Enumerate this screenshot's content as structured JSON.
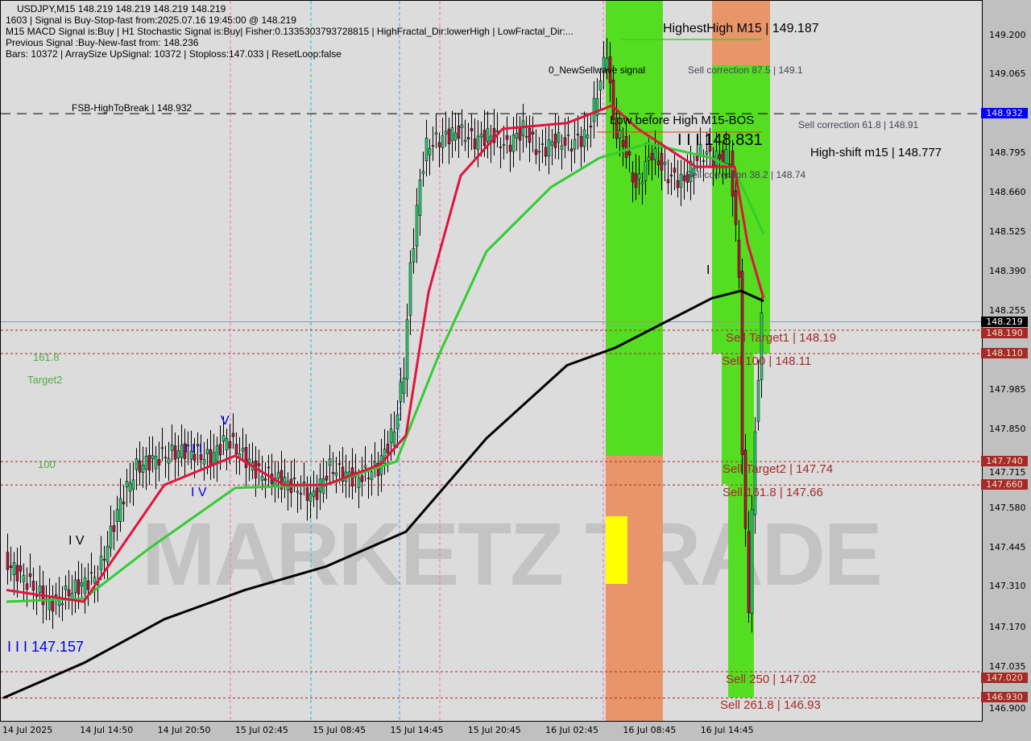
{
  "header": {
    "line1": "USDJPY,M15  148.219 148.219 148.219 148.219",
    "line2": "1603 | Signal is Buy-Stop-fast from:2025.07.16 19:45:00 @ 148.219",
    "line3": "M15 MACD Signal is:Buy | H1 Stochastic Signal is:Buy| Fisher:0.1335303793728815 | HighFractal_Dir:lowerHigh | LowFractal_Dir:...",
    "line4": "Previous Signal :Buy-New-fast from: 148.236",
    "line5": "Bars: 10372 | ArraySize UpSignal: 10372 | Stoploss:147.033 | ResetLoop:false"
  },
  "chart_data": {
    "type": "candlestick",
    "symbol": "USDJPY",
    "timeframe": "M15",
    "ylim": [
      146.9,
      149.25
    ],
    "y_ticks": [
      "149.200",
      "149.065",
      "148.795",
      "148.660",
      "148.525",
      "148.390",
      "148.255",
      "147.985",
      "147.850",
      "147.715",
      "147.580",
      "147.445",
      "147.310",
      "147.170",
      "147.035",
      "146.900"
    ],
    "x_ticks": [
      "14 Jul 2025",
      "14 Jul 14:50",
      "14 Jul 20:50",
      "15 Jul 02:45",
      "15 Jul 08:45",
      "15 Jul 14:45",
      "15 Jul 20:45",
      "16 Jul 02:45",
      "16 Jul 08:45",
      "16 Jul 14:45"
    ],
    "price_path": [
      [
        1,
        147.4
      ],
      [
        8,
        147.33
      ],
      [
        15,
        147.25
      ],
      [
        22,
        147.3
      ],
      [
        30,
        147.35
      ],
      [
        37,
        147.6
      ],
      [
        42,
        147.72
      ],
      [
        50,
        147.76
      ],
      [
        57,
        147.78
      ],
      [
        65,
        147.75
      ],
      [
        70,
        147.82
      ],
      [
        75,
        147.76
      ],
      [
        80,
        147.7
      ],
      [
        86,
        147.68
      ],
      [
        92,
        147.65
      ],
      [
        97,
        147.62
      ],
      [
        102,
        147.72
      ],
      [
        110,
        147.68
      ],
      [
        117,
        147.72
      ],
      [
        122,
        147.85
      ],
      [
        125,
        148.05
      ],
      [
        127,
        148.4
      ],
      [
        130,
        148.7
      ],
      [
        132,
        148.82
      ],
      [
        137,
        148.85
      ],
      [
        142,
        148.87
      ],
      [
        147,
        148.84
      ],
      [
        152,
        148.86
      ],
      [
        157,
        148.82
      ],
      [
        162,
        148.88
      ],
      [
        167,
        148.8
      ],
      [
        172,
        148.84
      ],
      [
        177,
        148.83
      ],
      [
        182,
        148.86
      ],
      [
        186,
        149.05
      ],
      [
        188,
        149.15
      ],
      [
        190,
        148.9
      ],
      [
        194,
        148.8
      ],
      [
        197,
        148.68
      ],
      [
        202,
        148.8
      ],
      [
        207,
        148.72
      ],
      [
        212,
        148.7
      ],
      [
        217,
        148.8
      ],
      [
        222,
        148.78
      ],
      [
        226,
        148.78
      ],
      [
        229,
        148.4
      ],
      [
        230,
        147.75
      ],
      [
        232,
        147.25
      ],
      [
        234,
        147.85
      ],
      [
        236,
        148.22
      ]
    ],
    "ma_fast_red": [
      [
        1,
        147.3
      ],
      [
        25,
        147.26
      ],
      [
        50,
        147.66
      ],
      [
        72,
        147.76
      ],
      [
        87,
        147.66
      ],
      [
        100,
        147.66
      ],
      [
        117,
        147.73
      ],
      [
        125,
        147.83
      ],
      [
        132,
        148.32
      ],
      [
        142,
        148.72
      ],
      [
        155,
        148.88
      ],
      [
        175,
        148.9
      ],
      [
        189,
        148.96
      ],
      [
        197,
        148.88
      ],
      [
        215,
        148.75
      ],
      [
        227,
        148.75
      ],
      [
        231,
        148.49
      ],
      [
        236,
        148.3
      ]
    ],
    "ma_mid_green": [
      [
        1,
        147.26
      ],
      [
        25,
        147.27
      ],
      [
        45,
        147.44
      ],
      [
        72,
        147.65
      ],
      [
        100,
        147.66
      ],
      [
        122,
        147.74
      ],
      [
        135,
        148.1
      ],
      [
        150,
        148.46
      ],
      [
        170,
        148.68
      ],
      [
        185,
        148.78
      ],
      [
        200,
        148.83
      ],
      [
        220,
        148.78
      ],
      [
        227,
        148.74
      ],
      [
        236,
        148.52
      ]
    ],
    "ma_slow_black": [
      [
        0,
        146.93
      ],
      [
        25,
        147.05
      ],
      [
        50,
        147.2
      ],
      [
        75,
        147.3
      ],
      [
        100,
        147.38
      ],
      [
        125,
        147.5
      ],
      [
        150,
        147.82
      ],
      [
        175,
        148.07
      ],
      [
        190,
        148.13
      ],
      [
        220,
        148.3
      ],
      [
        229,
        148.325
      ],
      [
        236,
        148.29
      ]
    ],
    "levels": [
      {
        "price": 148.932,
        "label": "FSB-HighToBreak | 148.932",
        "tag": "148.932",
        "color": "#0000ff",
        "style": "dash-black"
      },
      {
        "price": 148.219,
        "tag": "148.219",
        "color": "#000000",
        "style": "solid-gray"
      },
      {
        "price": 148.19,
        "label": "Sell Target1 | 148.19",
        "tag": "148.190",
        "color": "#a52a2a",
        "style": "dotted"
      },
      {
        "price": 148.11,
        "label": "Sell 100 | 148.11",
        "tag": "148.110",
        "color": "#a52a2a",
        "style": "dotted"
      },
      {
        "price": 147.74,
        "label": "Sell Target2 | 147.74",
        "tag": "147.740",
        "color": "#a52a2a",
        "style": "dotted"
      },
      {
        "price": 147.66,
        "label": "Sell 161.8 | 147.66",
        "tag": "147.660",
        "color": "#a52a2a",
        "style": "dotted"
      },
      {
        "price": 147.02,
        "label": "Sell 250 | 147.02",
        "tag": "147.020",
        "color": "#a52a2a",
        "style": "dotted"
      },
      {
        "price": 146.93,
        "label": "Sell 261.8 | 146.93",
        "tag": "146.930",
        "color": "#a52a2a",
        "style": "dotted"
      }
    ]
  },
  "annotations": {
    "highest_high": "HighestHigh    M15 | 149.187",
    "new_sell_wave": "0_NewSellwave signal",
    "sell_corr_875": "Sell correction 87.5 | 149.1",
    "sell_corr_618": "Sell correction 61.8 | 148.91",
    "sell_corr_382": "Sell correction 38.2 | 148.74",
    "low_before_high": "Low before High   M15-BOS",
    "low_value": "I I I 148.831",
    "high_shift": "High-shift m15 | 148.777",
    "left_1618": "161.8",
    "left_target2": "Target2",
    "left_100": "100",
    "wave_iii": "I I I 147.157",
    "wave_iv": "I V",
    "wave_v": "V",
    "wave_iv2": "I V",
    "wave_iii2": "I I I",
    "wave_i": "I",
    "watermark": "MARKETZ TRADE"
  },
  "colors": {
    "up": "#2ecc71",
    "down": "#c0143c",
    "ma_fast": "#e0143c",
    "ma_mid": "#33cc33",
    "ma_slow": "#000000",
    "zone_green": "#55dd22",
    "zone_orange": "#e8956a",
    "zone_yellow": "#ffff00"
  }
}
